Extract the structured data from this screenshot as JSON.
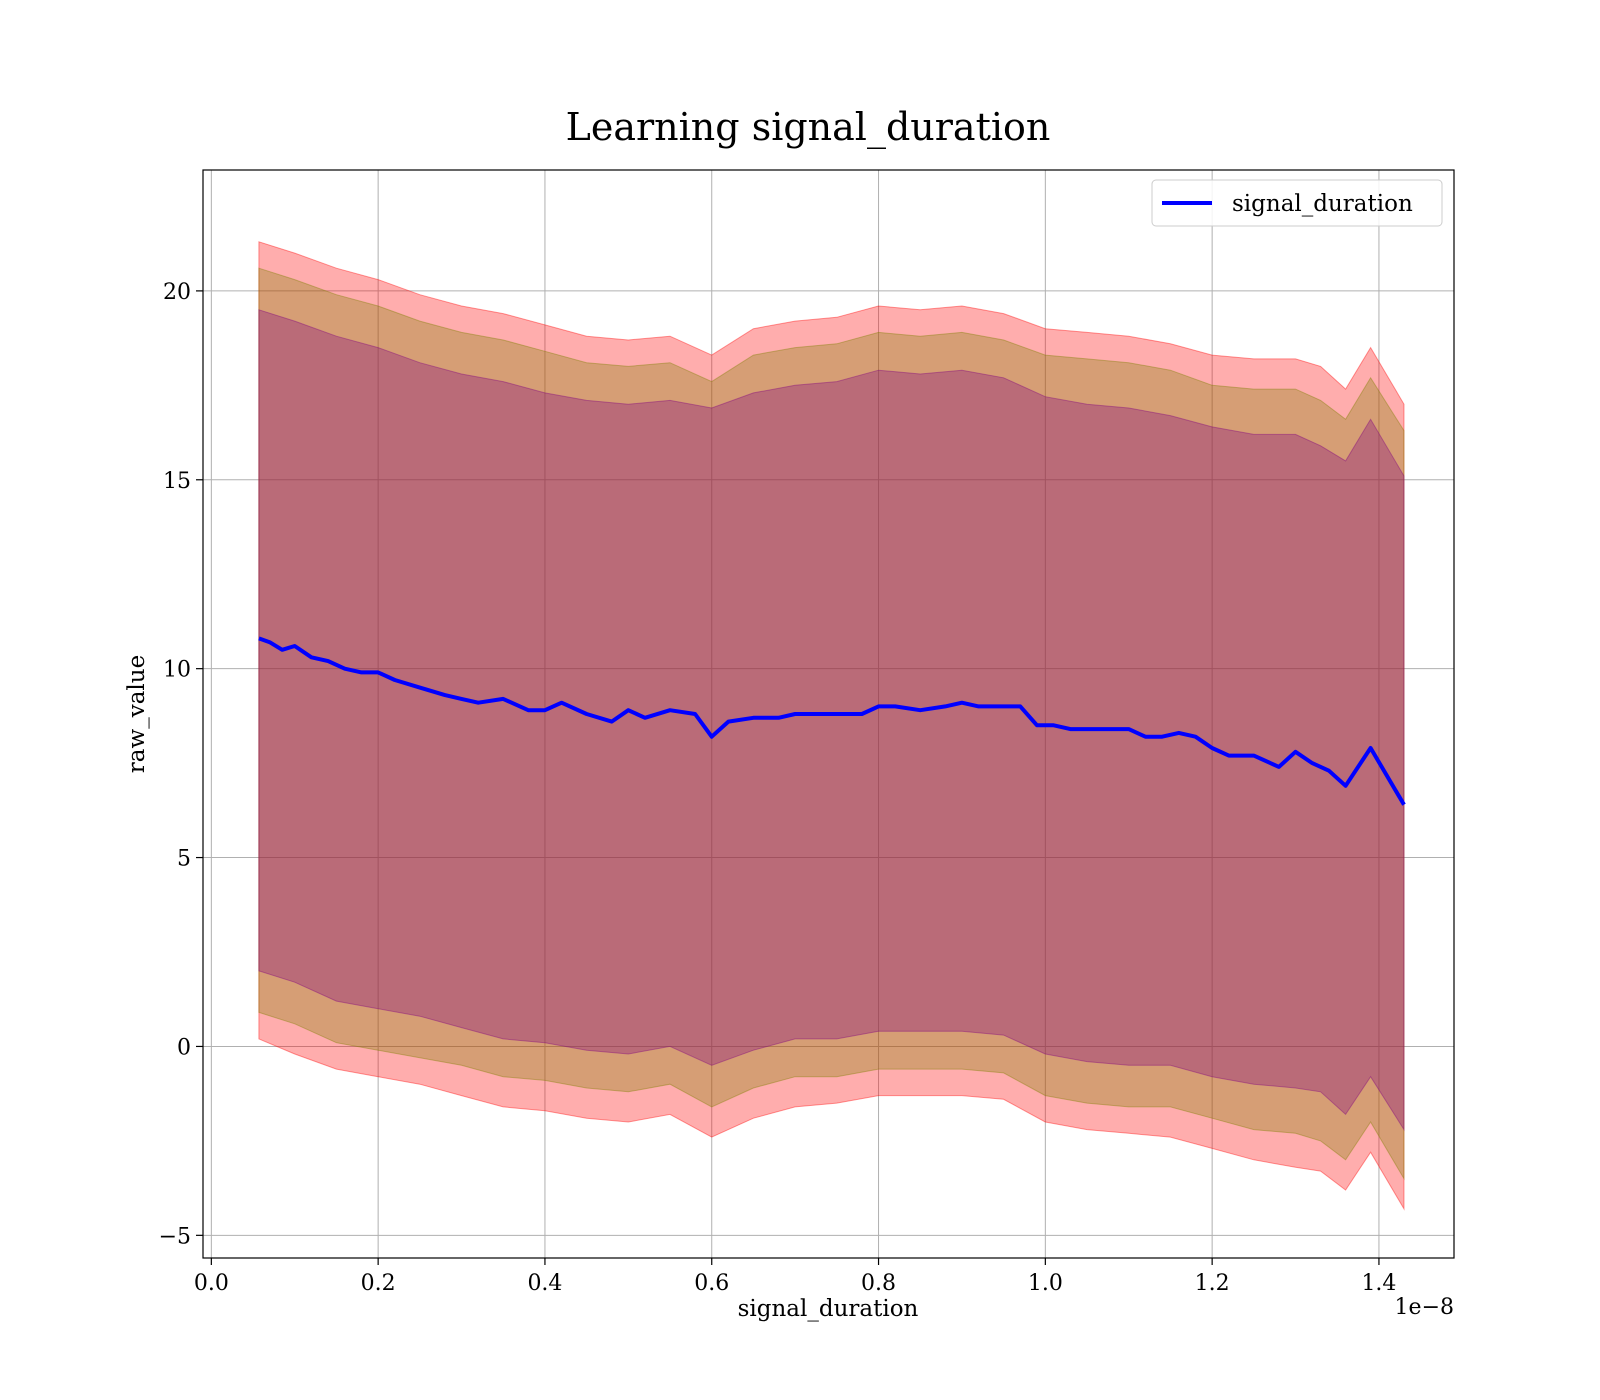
{
  "chart_data": {
    "type": "line",
    "title": "Learning signal_duration",
    "xlabel": "signal_duration",
    "ylabel": "raw_value",
    "x_offset_label": "1e−8",
    "xlim": [
      -0.01,
      1.49
    ],
    "ylim": [
      -5.6,
      23.2
    ],
    "x_ticks": [
      0.0,
      0.2,
      0.4,
      0.6,
      0.8,
      1.0,
      1.2,
      1.4
    ],
    "x_tick_labels": [
      "0.0",
      "0.2",
      "0.4",
      "0.6",
      "0.8",
      "1.0",
      "1.2",
      "1.4"
    ],
    "y_ticks": [
      -5,
      0,
      5,
      10,
      15,
      20
    ],
    "y_tick_labels": [
      "−5",
      "0",
      "5",
      "10",
      "15",
      "20"
    ],
    "grid": true,
    "legend_position": "top-right",
    "series": [
      {
        "name": "signal_duration",
        "color": "#0000ff",
        "x": [
          0.057,
          0.07,
          0.085,
          0.1,
          0.12,
          0.14,
          0.16,
          0.18,
          0.2,
          0.22,
          0.25,
          0.28,
          0.3,
          0.32,
          0.35,
          0.38,
          0.4,
          0.42,
          0.45,
          0.48,
          0.5,
          0.52,
          0.55,
          0.58,
          0.6,
          0.62,
          0.65,
          0.68,
          0.7,
          0.72,
          0.75,
          0.78,
          0.8,
          0.82,
          0.85,
          0.88,
          0.9,
          0.92,
          0.95,
          0.97,
          0.99,
          1.01,
          1.03,
          1.05,
          1.08,
          1.1,
          1.12,
          1.14,
          1.16,
          1.18,
          1.2,
          1.22,
          1.25,
          1.28,
          1.3,
          1.32,
          1.34,
          1.36,
          1.39,
          1.43
        ],
        "values": [
          10.8,
          10.7,
          10.5,
          10.6,
          10.3,
          10.2,
          10.0,
          9.9,
          9.9,
          9.7,
          9.5,
          9.3,
          9.2,
          9.1,
          9.2,
          8.9,
          8.9,
          9.1,
          8.8,
          8.6,
          8.9,
          8.7,
          8.9,
          8.8,
          8.2,
          8.6,
          8.7,
          8.7,
          8.8,
          8.8,
          8.8,
          8.8,
          9.0,
          9.0,
          8.9,
          9.0,
          9.1,
          9.0,
          9.0,
          9.0,
          8.5,
          8.5,
          8.4,
          8.4,
          8.4,
          8.4,
          8.2,
          8.2,
          8.3,
          8.2,
          7.9,
          7.7,
          7.7,
          7.4,
          7.8,
          7.5,
          7.3,
          6.9,
          7.9,
          6.4
        ]
      }
    ],
    "bands": [
      {
        "color": "#ff0000",
        "opacity": 0.32,
        "x": [
          0.057,
          0.1,
          0.15,
          0.2,
          0.25,
          0.3,
          0.35,
          0.4,
          0.45,
          0.5,
          0.55,
          0.6,
          0.65,
          0.7,
          0.75,
          0.8,
          0.85,
          0.9,
          0.95,
          1.0,
          1.05,
          1.1,
          1.15,
          1.2,
          1.25,
          1.3,
          1.33,
          1.36,
          1.39,
          1.43
        ],
        "upper": [
          21.3,
          21.0,
          20.6,
          20.3,
          19.9,
          19.6,
          19.4,
          19.1,
          18.8,
          18.7,
          18.8,
          18.3,
          19.0,
          19.2,
          19.3,
          19.6,
          19.5,
          19.6,
          19.4,
          19.0,
          18.9,
          18.8,
          18.6,
          18.3,
          18.2,
          18.2,
          18.0,
          17.4,
          18.5,
          17.0
        ],
        "lower": [
          0.2,
          -0.2,
          -0.6,
          -0.8,
          -1.0,
          -1.3,
          -1.6,
          -1.7,
          -1.9,
          -2.0,
          -1.8,
          -2.4,
          -1.9,
          -1.6,
          -1.5,
          -1.3,
          -1.3,
          -1.3,
          -1.4,
          -2.0,
          -2.2,
          -2.3,
          -2.4,
          -2.7,
          -3.0,
          -3.2,
          -3.3,
          -3.8,
          -2.8,
          -4.3
        ]
      },
      {
        "color": "#808000",
        "opacity": 0.32,
        "x": [
          0.057,
          0.1,
          0.15,
          0.2,
          0.25,
          0.3,
          0.35,
          0.4,
          0.45,
          0.5,
          0.55,
          0.6,
          0.65,
          0.7,
          0.75,
          0.8,
          0.85,
          0.9,
          0.95,
          1.0,
          1.05,
          1.1,
          1.15,
          1.2,
          1.25,
          1.3,
          1.33,
          1.36,
          1.39,
          1.43
        ],
        "upper": [
          20.6,
          20.3,
          19.9,
          19.6,
          19.2,
          18.9,
          18.7,
          18.4,
          18.1,
          18.0,
          18.1,
          17.6,
          18.3,
          18.5,
          18.6,
          18.9,
          18.8,
          18.9,
          18.7,
          18.3,
          18.2,
          18.1,
          17.9,
          17.5,
          17.4,
          17.4,
          17.1,
          16.6,
          17.7,
          16.3
        ],
        "lower": [
          0.9,
          0.6,
          0.1,
          -0.1,
          -0.3,
          -0.5,
          -0.8,
          -0.9,
          -1.1,
          -1.2,
          -1.0,
          -1.6,
          -1.1,
          -0.8,
          -0.8,
          -0.6,
          -0.6,
          -0.6,
          -0.7,
          -1.3,
          -1.5,
          -1.6,
          -1.6,
          -1.9,
          -2.2,
          -2.3,
          -2.5,
          -3.0,
          -2.0,
          -3.5
        ]
      },
      {
        "color": "#800080",
        "opacity": 0.32,
        "x": [
          0.057,
          0.1,
          0.15,
          0.2,
          0.25,
          0.3,
          0.35,
          0.4,
          0.45,
          0.5,
          0.55,
          0.6,
          0.65,
          0.7,
          0.75,
          0.8,
          0.85,
          0.9,
          0.95,
          1.0,
          1.05,
          1.1,
          1.15,
          1.2,
          1.25,
          1.3,
          1.33,
          1.36,
          1.39,
          1.43
        ],
        "upper": [
          19.5,
          19.2,
          18.8,
          18.5,
          18.1,
          17.8,
          17.6,
          17.3,
          17.1,
          17.0,
          17.1,
          16.9,
          17.3,
          17.5,
          17.6,
          17.9,
          17.8,
          17.9,
          17.7,
          17.2,
          17.0,
          16.9,
          16.7,
          16.4,
          16.2,
          16.2,
          15.9,
          15.5,
          16.6,
          15.1
        ],
        "lower": [
          2.0,
          1.7,
          1.2,
          1.0,
          0.8,
          0.5,
          0.2,
          0.1,
          -0.1,
          -0.2,
          0.0,
          -0.5,
          -0.1,
          0.2,
          0.2,
          0.4,
          0.4,
          0.4,
          0.3,
          -0.2,
          -0.4,
          -0.5,
          -0.5,
          -0.8,
          -1.0,
          -1.1,
          -1.2,
          -1.8,
          -0.8,
          -2.2
        ]
      }
    ]
  }
}
